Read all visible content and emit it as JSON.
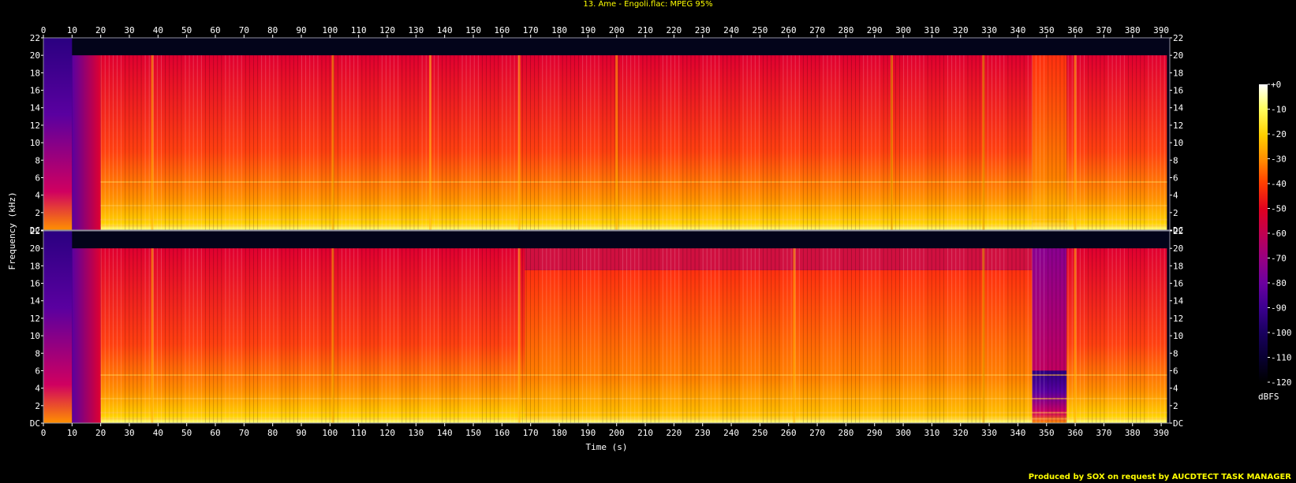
{
  "header": {
    "title": "13. Âme - Engoli.flac: MPEG 95%"
  },
  "footer": {
    "credit": "Produced by SOX on request by AUCDTECT TASK MANAGER"
  },
  "chart_data": {
    "type": "heatmap",
    "title": "13. Âme - Engoli.flac: MPEG 95%",
    "xlabel": "Time (s)",
    "ylabel": "Frequency (kHz)",
    "xlim": [
      0,
      393
    ],
    "ylim": [
      0,
      22
    ],
    "x_ticks": [
      0,
      10,
      20,
      30,
      40,
      50,
      60,
      70,
      80,
      90,
      100,
      110,
      120,
      130,
      140,
      150,
      160,
      170,
      180,
      190,
      200,
      210,
      220,
      230,
      240,
      250,
      260,
      270,
      280,
      290,
      300,
      310,
      320,
      330,
      340,
      350,
      360,
      370,
      380,
      390
    ],
    "y_ticks": [
      {
        "value": 0,
        "label": "DC"
      },
      {
        "value": 2,
        "label": "2"
      },
      {
        "value": 4,
        "label": "4"
      },
      {
        "value": 6,
        "label": "6"
      },
      {
        "value": 8,
        "label": "8"
      },
      {
        "value": 10,
        "label": "10"
      },
      {
        "value": 12,
        "label": "12"
      },
      {
        "value": 14,
        "label": "14"
      },
      {
        "value": 16,
        "label": "16"
      },
      {
        "value": 18,
        "label": "18"
      },
      {
        "value": 20,
        "label": "20"
      },
      {
        "value": 22,
        "label": "22"
      }
    ],
    "colorbar": {
      "unit": "dBFS",
      "ticks": [
        "+0",
        "-10",
        "-20",
        "-30",
        "-40",
        "-50",
        "-60",
        "-70",
        "-80",
        "-90",
        "-100",
        "-110",
        "-120"
      ],
      "colors": [
        "#ffffff",
        "#ffff60",
        "#ffd000",
        "#ff9000",
        "#ff4000",
        "#e00020",
        "#c00050",
        "#9a0080",
        "#6a00a0",
        "#3c0090",
        "#1a0060",
        "#080030",
        "#000000"
      ]
    },
    "channels": [
      {
        "name": "left",
        "cutoff_khz": 20,
        "segments": [
          {
            "x": [
              0,
              10
            ],
            "cutoff_khz": 22,
            "level": "low"
          },
          {
            "x": [
              10,
              20
            ],
            "cutoff_khz": 20,
            "level": "ramp"
          },
          {
            "x": [
              20,
              345
            ],
            "cutoff_khz": 20,
            "level": "high"
          },
          {
            "x": [
              345,
              357
            ],
            "cutoff_khz": 20,
            "level": "mid"
          },
          {
            "x": [
              357,
              392
            ],
            "cutoff_khz": 20,
            "level": "high"
          }
        ],
        "transients_s": [
          38,
          101,
          135,
          166,
          200,
          296,
          328,
          360
        ]
      },
      {
        "name": "right",
        "cutoff_khz": 20,
        "segments": [
          {
            "x": [
              0,
              10
            ],
            "cutoff_khz": 22,
            "level": "low"
          },
          {
            "x": [
              10,
              20
            ],
            "cutoff_khz": 20,
            "level": "ramp"
          },
          {
            "x": [
              20,
              168
            ],
            "cutoff_khz": 20,
            "level": "high"
          },
          {
            "x": [
              168,
              345
            ],
            "cutoff_khz": 17.5,
            "level": "mid"
          },
          {
            "x": [
              345,
              357
            ],
            "cutoff_khz": 6,
            "level": "low"
          },
          {
            "x": [
              357,
              392
            ],
            "cutoff_khz": 20,
            "level": "high"
          }
        ],
        "transients_s": [
          38,
          101,
          166,
          262,
          328,
          360
        ]
      }
    ]
  }
}
